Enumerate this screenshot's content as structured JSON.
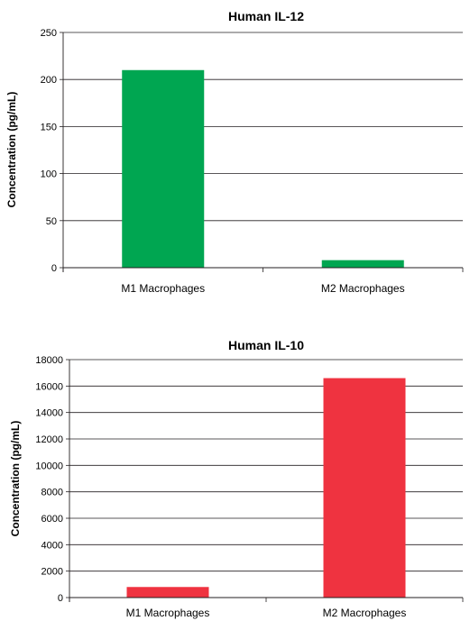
{
  "chart_data": [
    {
      "type": "bar",
      "title": "Human IL-12",
      "ylabel": "Concentration (pg/mL)",
      "xlabel": "",
      "categories": [
        "M1 Macrophages",
        "M2 Macrophages"
      ],
      "values": [
        210,
        8
      ],
      "ylim": [
        0,
        250
      ],
      "yticks": [
        0,
        50,
        100,
        150,
        200,
        250
      ],
      "grid": true,
      "color": "#00a651"
    },
    {
      "type": "bar",
      "title": "Human IL-10",
      "ylabel": "Concentration (pg/mL)",
      "xlabel": "",
      "categories": [
        "M1 Macrophages",
        "M2 Macrophages"
      ],
      "values": [
        800,
        16600
      ],
      "ylim": [
        0,
        18000
      ],
      "yticks": [
        0,
        2000,
        4000,
        6000,
        8000,
        10000,
        12000,
        14000,
        16000,
        18000
      ],
      "grid": true,
      "color": "#ef3340"
    }
  ]
}
